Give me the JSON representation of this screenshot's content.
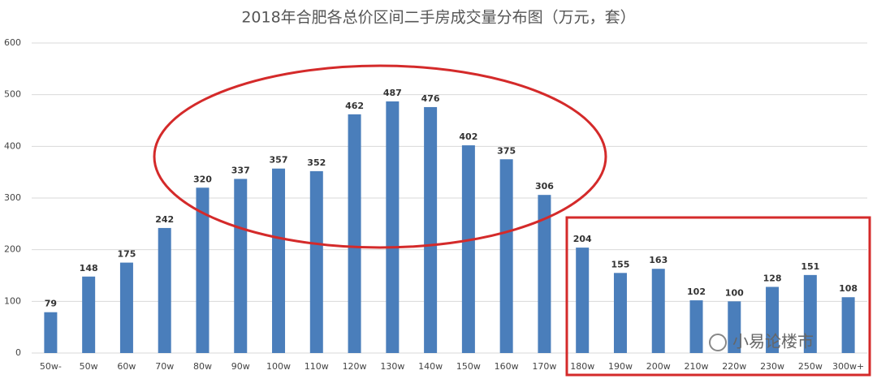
{
  "chart_data": {
    "type": "bar",
    "title": "2018年合肥各总价区间二手房成交量分布图（万元，套）",
    "categories": [
      "50w-",
      "50w",
      "60w",
      "70w",
      "80w",
      "90w",
      "100w",
      "110w",
      "120w",
      "130w",
      "140w",
      "150w",
      "160w",
      "170w",
      "180w",
      "190w",
      "200w",
      "210w",
      "220w",
      "230w",
      "250w",
      "300w+"
    ],
    "values": [
      79,
      148,
      175,
      242,
      320,
      337,
      357,
      352,
      462,
      487,
      476,
      402,
      375,
      306,
      204,
      155,
      163,
      102,
      100,
      128,
      151,
      108
    ],
    "color": "#4a7ebb",
    "ylim": [
      0,
      600
    ],
    "yticks": [
      0,
      100,
      200,
      300,
      400,
      500,
      600
    ],
    "grid": true
  },
  "watermark": "小易论楼市"
}
